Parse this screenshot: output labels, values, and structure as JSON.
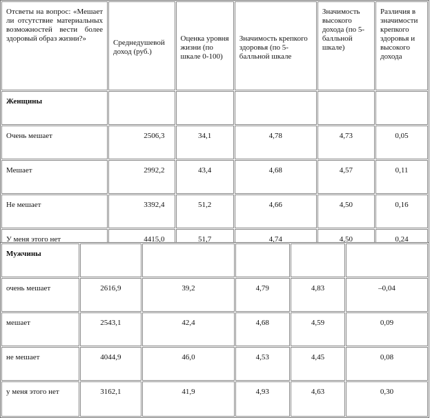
{
  "headers": [
    "Отсветы на вопрос: «Мешает ли отсутствие материальных возможностей вести более здоровый образ жизни?»",
    "Среднедушевой доход (руб.)",
    "Оценка уровня жизни (по шкале 0-100)",
    "Значимость крепкого здоровья (по 5-балльной шкале",
    "Значимость высокого дохода (по 5-балльной шкале)",
    "Различия в значимости крепкого здоровья и высокого дохода"
  ],
  "women": {
    "label": "Женщины",
    "rows": [
      {
        "answer": "Очень мешает",
        "income": "2506,3",
        "level": "34,1",
        "health": "4,78",
        "high_income": "4,73",
        "diff": "0,05"
      },
      {
        "answer": "Мешает",
        "income": "2992,2",
        "level": "43,4",
        "health": "4,68",
        "high_income": "4,57",
        "diff": "0,11"
      },
      {
        "answer": "Не мешает",
        "income": "3392,4",
        "level": "51,2",
        "health": "4,66",
        "high_income": "4,50",
        "diff": "0,16"
      },
      {
        "answer": "У меня этого нет",
        "income": "4415,0",
        "level": "51,7",
        "health": "4,74",
        "high_income": "4,50",
        "diff": "0,24"
      }
    ]
  },
  "men": {
    "label": "Мужчины",
    "rows": [
      {
        "answer": "очень мешает",
        "income": "2616,9",
        "level": "39,2",
        "health": "4,79",
        "high_income": "4,83",
        "diff": "–0,04"
      },
      {
        "answer": "мешает",
        "income": "2543,1",
        "level": "42,4",
        "health": "4,68",
        "high_income": "4,59",
        "diff": "0,09"
      },
      {
        "answer": "не мешает",
        "income": "4044,9",
        "level": "46,0",
        "health": "4,53",
        "high_income": "4,45",
        "diff": "0,08"
      },
      {
        "answer": "у меня этого нет",
        "income": "3162,1",
        "level": "41,9",
        "health": "4,93",
        "high_income": "4,63",
        "diff": "0,30"
      }
    ]
  }
}
